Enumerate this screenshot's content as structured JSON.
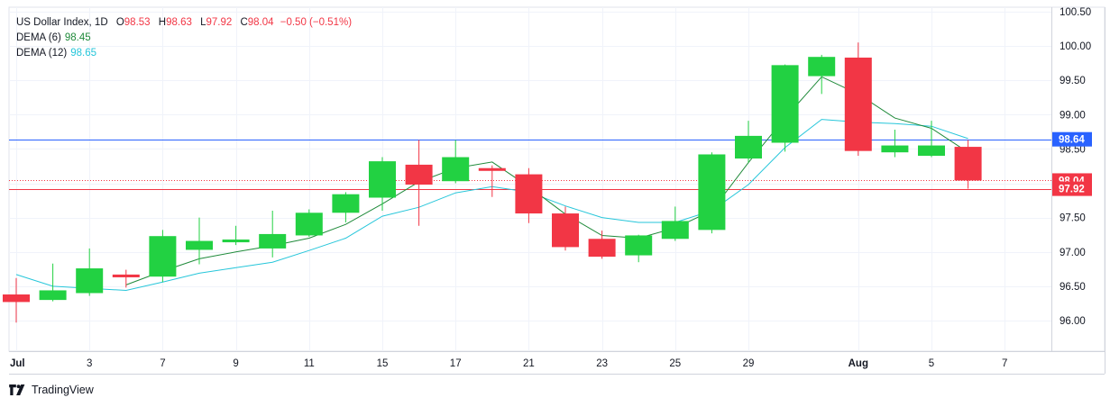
{
  "legend": {
    "symbol": "US Dollar Index, 1D",
    "o_label": "O",
    "o_value": "98.53",
    "h_label": "H",
    "h_value": "98.63",
    "l_label": "L",
    "l_value": "97.92",
    "c_label": "C",
    "c_value": "98.04",
    "change": "−0.50 (−0.51%)",
    "dema6_label": "DEMA (6)",
    "dema6_value": "98.45",
    "dema12_label": "DEMA (12)",
    "dema12_value": "98.65"
  },
  "brand": {
    "name": "TradingView",
    "icon": "tradingview-logo-icon"
  },
  "colors": {
    "up": "#22d142",
    "down": "#f23645",
    "dema6": "#1f8a3a",
    "dema12": "#26c6da",
    "blue_line": "#2962ff",
    "red_line": "#f23645",
    "grid": "#f0f3fa",
    "text": "#131722"
  },
  "chart_data": {
    "type": "candlestick",
    "title": "US Dollar Index, 1D",
    "ylim": [
      95.6,
      100.6
    ],
    "y_ticks": [
      "96.00",
      "96.50",
      "97.00",
      "97.50",
      "98.00",
      "98.50",
      "99.00",
      "99.50",
      "100.00",
      "100.50"
    ],
    "y_tick_values": [
      96.0,
      96.5,
      97.0,
      97.5,
      98.0,
      98.5,
      99.0,
      99.5,
      100.0,
      100.5
    ],
    "x_tick_labels": [
      {
        "label": "Jul",
        "index": 0
      },
      {
        "label": "3",
        "index": 2
      },
      {
        "label": "7",
        "index": 4
      },
      {
        "label": "9",
        "index": 6
      },
      {
        "label": "11",
        "index": 8
      },
      {
        "label": "15",
        "index": 10
      },
      {
        "label": "17",
        "index": 12
      },
      {
        "label": "21",
        "index": 14
      },
      {
        "label": "23",
        "index": 16
      },
      {
        "label": "25",
        "index": 18
      },
      {
        "label": "29",
        "index": 20
      },
      {
        "label": "Aug",
        "index": 23
      },
      {
        "label": "5",
        "index": 25
      },
      {
        "label": "7",
        "index": 27
      }
    ],
    "candles": [
      {
        "o": 96.38,
        "h": 96.62,
        "l": 95.97,
        "c": 96.27
      },
      {
        "o": 96.3,
        "h": 96.83,
        "l": 96.28,
        "c": 96.44
      },
      {
        "o": 96.4,
        "h": 97.05,
        "l": 96.36,
        "c": 96.76
      },
      {
        "o": 96.67,
        "h": 96.74,
        "l": 96.48,
        "c": 96.63
      },
      {
        "o": 96.64,
        "h": 97.32,
        "l": 96.56,
        "c": 97.23
      },
      {
        "o": 97.03,
        "h": 97.5,
        "l": 96.82,
        "c": 97.16
      },
      {
        "o": 97.14,
        "h": 97.38,
        "l": 97.1,
        "c": 97.18
      },
      {
        "o": 97.05,
        "h": 97.6,
        "l": 96.92,
        "c": 97.26
      },
      {
        "o": 97.24,
        "h": 97.62,
        "l": 97.22,
        "c": 97.57
      },
      {
        "o": 97.57,
        "h": 97.87,
        "l": 97.43,
        "c": 97.84
      },
      {
        "o": 97.79,
        "h": 98.38,
        "l": 97.6,
        "c": 98.32
      },
      {
        "o": 98.27,
        "h": 98.63,
        "l": 97.38,
        "c": 97.98
      },
      {
        "o": 98.03,
        "h": 98.63,
        "l": 98.0,
        "c": 98.38
      },
      {
        "o": 98.22,
        "h": 98.26,
        "l": 97.8,
        "c": 98.18
      },
      {
        "o": 98.13,
        "h": 98.22,
        "l": 97.42,
        "c": 97.56
      },
      {
        "o": 97.56,
        "h": 97.66,
        "l": 97.02,
        "c": 97.07
      },
      {
        "o": 97.19,
        "h": 97.31,
        "l": 96.9,
        "c": 96.93
      },
      {
        "o": 96.95,
        "h": 97.25,
        "l": 96.85,
        "c": 97.24
      },
      {
        "o": 97.19,
        "h": 97.66,
        "l": 97.16,
        "c": 97.45
      },
      {
        "o": 97.32,
        "h": 98.45,
        "l": 97.27,
        "c": 98.42
      },
      {
        "o": 98.36,
        "h": 98.91,
        "l": 98.3,
        "c": 98.69
      },
      {
        "o": 98.59,
        "h": 99.73,
        "l": 98.46,
        "c": 99.72
      },
      {
        "o": 99.56,
        "h": 99.87,
        "l": 99.3,
        "c": 99.84
      },
      {
        "o": 99.83,
        "h": 100.05,
        "l": 98.4,
        "c": 98.47
      },
      {
        "o": 98.45,
        "h": 98.78,
        "l": 98.38,
        "c": 98.55
      },
      {
        "o": 98.4,
        "h": 98.91,
        "l": 98.38,
        "c": 98.55
      },
      {
        "o": 98.53,
        "h": 98.63,
        "l": 97.92,
        "c": 98.04
      }
    ],
    "dema6": [
      null,
      null,
      null,
      96.52,
      96.72,
      96.9,
      97.0,
      97.09,
      97.2,
      97.4,
      97.7,
      98.02,
      98.22,
      98.31,
      97.95,
      97.55,
      97.24,
      97.2,
      97.35,
      97.6,
      98.3,
      98.95,
      99.55,
      99.3,
      98.95,
      98.8,
      98.45
    ],
    "dema12": [
      96.67,
      96.5,
      96.47,
      96.44,
      96.56,
      96.69,
      96.77,
      96.85,
      97.02,
      97.2,
      97.52,
      97.65,
      97.86,
      97.95,
      97.87,
      97.67,
      97.5,
      97.43,
      97.43,
      97.6,
      97.98,
      98.52,
      98.93,
      98.89,
      98.87,
      98.83,
      98.65
    ],
    "price_lines": [
      {
        "value": 98.64,
        "label": "98.64",
        "color": "#2962ff",
        "style": "solid"
      },
      {
        "value": 98.04,
        "label": "98.04",
        "color": "#f23645",
        "style": "dotted"
      },
      {
        "value": 97.92,
        "label": "97.92",
        "color": "#f23645",
        "style": "solid"
      }
    ]
  }
}
